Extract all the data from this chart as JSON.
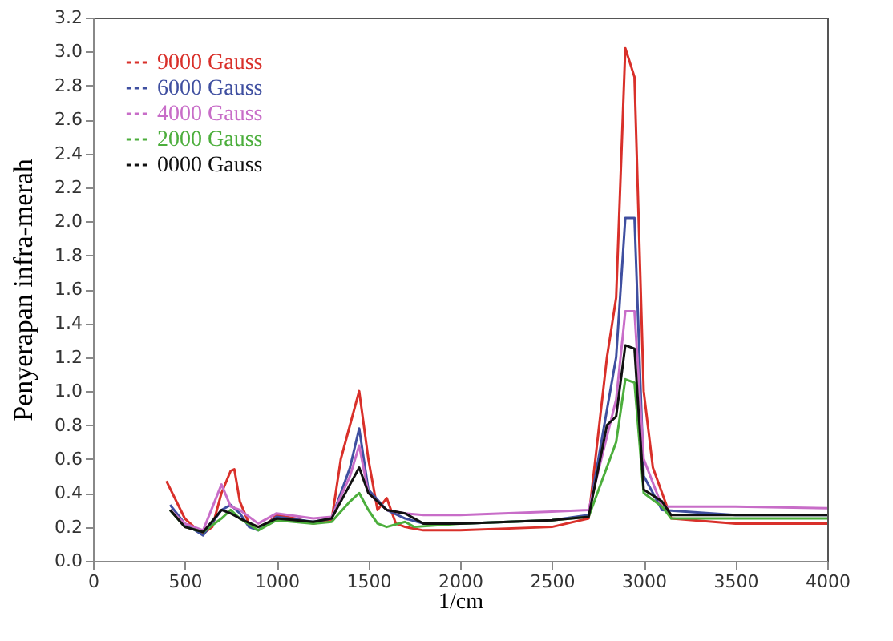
{
  "chart_data": {
    "type": "line",
    "xlabel": "1/cm",
    "ylabel": "Penyerapan infra-merah",
    "xlim": [
      0,
      4000
    ],
    "xticks": [
      0,
      500,
      1000,
      1500,
      2000,
      2500,
      3000,
      3500,
      4000
    ],
    "ylim": [
      0,
      3.2
    ],
    "yticks": [
      {
        "value": 0,
        "label": "0.0"
      },
      0.2,
      0.4,
      0.6,
      0.8,
      {
        "value": 1,
        "label": "1.0"
      },
      1.2,
      1.4,
      1.6,
      1.8,
      {
        "value": 2,
        "label": "2.0"
      },
      2.2,
      2.4,
      2.6,
      2.8,
      {
        "value": 3,
        "label": "3.0"
      },
      3.2
    ],
    "grid": false,
    "legend": "top left",
    "line_style": "solid",
    "marker": "none",
    "series": [
      {
        "name": "9000 Gauss",
        "color": "#d9302a",
        "x": [
          400,
          500,
          550,
          600,
          650,
          700,
          750,
          770,
          800,
          850,
          900,
          950,
          1000,
          1100,
          1200,
          1300,
          1350,
          1400,
          1450,
          1500,
          1550,
          1600,
          1650,
          1700,
          1800,
          2000,
          2500,
          2700,
          2800,
          2850,
          2900,
          2950,
          3000,
          3050,
          3150,
          3500,
          4000
        ],
        "values": [
          0.47,
          0.25,
          0.2,
          0.16,
          0.2,
          0.4,
          0.53,
          0.54,
          0.35,
          0.22,
          0.2,
          0.22,
          0.27,
          0.25,
          0.22,
          0.24,
          0.6,
          0.8,
          1.0,
          0.6,
          0.3,
          0.37,
          0.22,
          0.2,
          0.18,
          0.18,
          0.2,
          0.25,
          1.2,
          1.55,
          3.02,
          2.85,
          1.0,
          0.55,
          0.25,
          0.22,
          0.22
        ]
      },
      {
        "name": "6000 Gauss",
        "color": "#3f4fa0",
        "x": [
          420,
          500,
          600,
          700,
          750,
          800,
          850,
          900,
          1000,
          1200,
          1300,
          1400,
          1450,
          1500,
          1600,
          1700,
          1800,
          2000,
          2500,
          2700,
          2850,
          2900,
          2950,
          3000,
          3100,
          3500,
          4000
        ],
        "values": [
          0.33,
          0.22,
          0.15,
          0.3,
          0.33,
          0.28,
          0.2,
          0.18,
          0.26,
          0.23,
          0.25,
          0.55,
          0.78,
          0.42,
          0.3,
          0.25,
          0.22,
          0.22,
          0.24,
          0.27,
          1.2,
          2.02,
          2.02,
          0.5,
          0.3,
          0.27,
          0.27
        ]
      },
      {
        "name": "4000 Gauss",
        "color": "#c86dc8",
        "x": [
          420,
          500,
          600,
          700,
          750,
          800,
          900,
          1000,
          1200,
          1300,
          1400,
          1450,
          1500,
          1600,
          1700,
          1800,
          2000,
          2500,
          2700,
          2850,
          2900,
          2950,
          3000,
          3100,
          3500,
          4000
        ],
        "values": [
          0.3,
          0.22,
          0.18,
          0.45,
          0.32,
          0.3,
          0.22,
          0.28,
          0.25,
          0.26,
          0.5,
          0.68,
          0.4,
          0.3,
          0.28,
          0.27,
          0.27,
          0.29,
          0.3,
          0.95,
          1.47,
          1.47,
          0.6,
          0.32,
          0.32,
          0.31
        ]
      },
      {
        "name": "2000 Gauss",
        "color": "#4cae3c",
        "x": [
          420,
          500,
          600,
          700,
          750,
          800,
          900,
          1000,
          1200,
          1300,
          1400,
          1450,
          1500,
          1550,
          1600,
          1700,
          1750,
          2000,
          2500,
          2700,
          2850,
          2900,
          2950,
          3000,
          3100,
          3150,
          3500,
          4000
        ],
        "values": [
          0.3,
          0.2,
          0.17,
          0.25,
          0.3,
          0.25,
          0.18,
          0.24,
          0.22,
          0.23,
          0.35,
          0.4,
          0.3,
          0.22,
          0.2,
          0.23,
          0.2,
          0.22,
          0.24,
          0.26,
          0.7,
          1.07,
          1.05,
          0.4,
          0.32,
          0.25,
          0.25,
          0.25
        ]
      },
      {
        "name": "0000 Gauss",
        "color": "#111111",
        "x": [
          420,
          500,
          600,
          700,
          750,
          800,
          900,
          1000,
          1200,
          1300,
          1400,
          1450,
          1500,
          1600,
          1700,
          1800,
          2000,
          2500,
          2700,
          2800,
          2850,
          2900,
          2950,
          3000,
          3100,
          3150,
          3500,
          4000
        ],
        "values": [
          0.3,
          0.2,
          0.17,
          0.3,
          0.28,
          0.25,
          0.2,
          0.25,
          0.23,
          0.25,
          0.45,
          0.55,
          0.4,
          0.3,
          0.28,
          0.22,
          0.22,
          0.24,
          0.26,
          0.8,
          0.85,
          1.27,
          1.25,
          0.42,
          0.35,
          0.27,
          0.27,
          0.27
        ]
      }
    ]
  }
}
